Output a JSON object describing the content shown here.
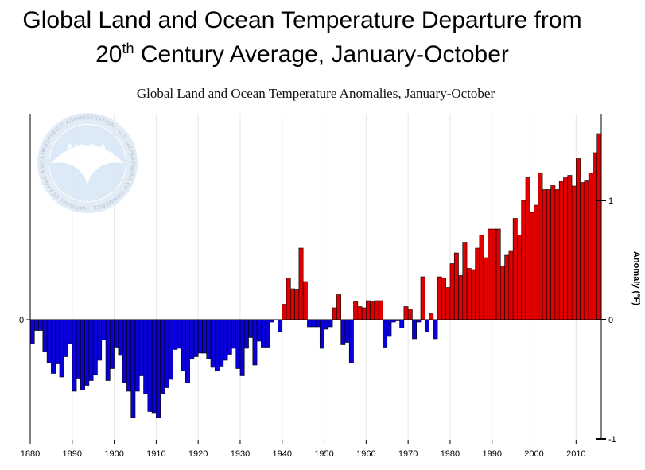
{
  "slide": {
    "title_line1": "Global Land and Ocean Temperature Departure from",
    "title_line2_pre": "20",
    "title_line2_sup": "th",
    "title_line2_post": " Century Average, January-October"
  },
  "logo": {
    "text": "NOAA",
    "ring_text": "NATIONAL OCEANIC AND ATMOSPHERIC ADMINISTRATION · U.S. DEPARTMENT OF COMMERCE",
    "color": "#d6e6f5"
  },
  "chart_data": {
    "type": "bar",
    "title": "Global Land and Ocean Temperature Anomalies, January-October",
    "xlabel": "",
    "ylabel_right": "Anomaly (°F)",
    "x_ticks": [
      "1880",
      "1890",
      "1900",
      "1910",
      "1920",
      "1930",
      "1940",
      "1950",
      "1960",
      "1970",
      "1980",
      "1990",
      "2000",
      "2010"
    ],
    "left_ticks": [
      "0"
    ],
    "right_ticks": [
      "1",
      "0",
      "-1"
    ],
    "ylim": [
      -1.0,
      1.73
    ],
    "xlim": [
      1880,
      2016
    ],
    "grid": "vertical",
    "positive_color": "#e00000",
    "negative_color": "#0a00d8",
    "x": [
      1880,
      1881,
      1882,
      1883,
      1884,
      1885,
      1886,
      1887,
      1888,
      1889,
      1890,
      1891,
      1892,
      1893,
      1894,
      1895,
      1896,
      1897,
      1898,
      1899,
      1900,
      1901,
      1902,
      1903,
      1904,
      1905,
      1906,
      1907,
      1908,
      1909,
      1910,
      1911,
      1912,
      1913,
      1914,
      1915,
      1916,
      1917,
      1918,
      1919,
      1920,
      1921,
      1922,
      1923,
      1924,
      1925,
      1926,
      1927,
      1928,
      1929,
      1930,
      1931,
      1932,
      1933,
      1934,
      1935,
      1936,
      1937,
      1938,
      1939,
      1940,
      1941,
      1942,
      1943,
      1944,
      1945,
      1946,
      1947,
      1948,
      1949,
      1950,
      1951,
      1952,
      1953,
      1954,
      1955,
      1956,
      1957,
      1958,
      1959,
      1960,
      1961,
      1962,
      1963,
      1964,
      1965,
      1966,
      1967,
      1968,
      1969,
      1970,
      1971,
      1972,
      1973,
      1974,
      1975,
      1976,
      1977,
      1978,
      1979,
      1980,
      1981,
      1982,
      1983,
      1984,
      1985,
      1986,
      1987,
      1988,
      1989,
      1990,
      1991,
      1992,
      1993,
      1994,
      1995,
      1996,
      1997,
      1998,
      1999,
      2000,
      2001,
      2002,
      2003,
      2004,
      2005,
      2006,
      2007,
      2008,
      2009,
      2010,
      2011,
      2012,
      2013,
      2014,
      2015
    ],
    "values": [
      -0.2,
      -0.09,
      -0.09,
      -0.27,
      -0.36,
      -0.45,
      -0.37,
      -0.48,
      -0.31,
      -0.2,
      -0.6,
      -0.49,
      -0.59,
      -0.55,
      -0.51,
      -0.46,
      -0.34,
      -0.17,
      -0.51,
      -0.41,
      -0.23,
      -0.3,
      -0.53,
      -0.6,
      -0.82,
      -0.6,
      -0.47,
      -0.62,
      -0.77,
      -0.78,
      -0.82,
      -0.62,
      -0.57,
      -0.5,
      -0.25,
      -0.24,
      -0.43,
      -0.53,
      -0.33,
      -0.31,
      -0.28,
      -0.28,
      -0.33,
      -0.4,
      -0.43,
      -0.39,
      -0.34,
      -0.29,
      -0.24,
      -0.41,
      -0.47,
      -0.24,
      -0.15,
      -0.38,
      -0.18,
      -0.23,
      -0.23,
      -0.02,
      0.0,
      -0.1,
      0.13,
      0.35,
      0.26,
      0.25,
      0.6,
      0.32,
      -0.06,
      -0.06,
      -0.06,
      -0.24,
      -0.08,
      -0.06,
      0.1,
      0.21,
      -0.21,
      -0.19,
      -0.36,
      0.15,
      0.11,
      0.1,
      0.16,
      0.15,
      0.16,
      0.16,
      -0.23,
      -0.14,
      -0.02,
      -0.01,
      -0.07,
      0.11,
      0.09,
      -0.16,
      -0.02,
      0.36,
      -0.1,
      0.05,
      -0.16,
      0.36,
      0.35,
      0.27,
      0.47,
      0.56,
      0.37,
      0.65,
      0.43,
      0.42,
      0.6,
      0.71,
      0.52,
      0.76,
      0.76,
      0.76,
      0.45,
      0.54,
      0.58,
      0.85,
      0.71,
      1.0,
      1.19,
      0.9,
      0.96,
      1.23,
      1.09,
      1.09,
      1.13,
      1.09,
      1.16,
      1.19,
      1.21,
      1.12,
      1.35,
      1.15,
      1.17,
      1.23,
      1.4,
      1.56
    ]
  }
}
